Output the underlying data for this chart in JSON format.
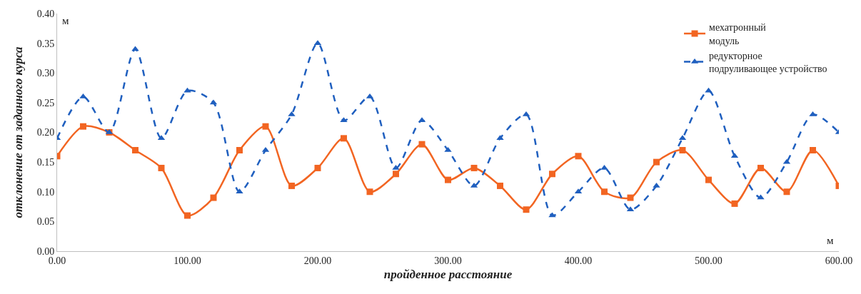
{
  "chart_data": {
    "type": "line",
    "x": [
      0,
      20,
      40,
      60,
      80,
      100,
      120,
      140,
      160,
      180,
      200,
      220,
      240,
      260,
      280,
      300,
      320,
      340,
      360,
      380,
      400,
      420,
      440,
      460,
      480,
      500,
      520,
      540,
      560,
      580,
      600
    ],
    "series": [
      {
        "name": "мехатронный\nмодуль",
        "color": "#f26522",
        "marker": "square",
        "line_style": "solid",
        "values": [
          0.16,
          0.21,
          0.2,
          0.17,
          0.14,
          0.06,
          0.09,
          0.17,
          0.21,
          0.11,
          0.14,
          0.19,
          0.1,
          0.13,
          0.18,
          0.12,
          0.14,
          0.11,
          0.07,
          0.13,
          0.16,
          0.1,
          0.09,
          0.15,
          0.17,
          0.12,
          0.08,
          0.14,
          0.1,
          0.17,
          0.11
        ]
      },
      {
        "name": "редукторное\nподруливающее устройство",
        "color": "#1f5fbf",
        "marker": "triangle",
        "line_style": "dashed",
        "values": [
          0.19,
          0.26,
          0.2,
          0.34,
          0.19,
          0.27,
          0.25,
          0.1,
          0.17,
          0.23,
          0.35,
          0.22,
          0.26,
          0.14,
          0.22,
          0.17,
          0.11,
          0.19,
          0.23,
          0.06,
          0.1,
          0.14,
          0.07,
          0.11,
          0.19,
          0.27,
          0.16,
          0.09,
          0.15,
          0.23,
          0.2
        ]
      }
    ],
    "xlabel": "пройденное расстояние",
    "ylabel": "отклонение от заданного курса",
    "xlim": [
      0,
      600
    ],
    "xticks": [
      {
        "value": 0,
        "label": "0.00"
      },
      {
        "value": 100,
        "label": "100.00"
      },
      {
        "value": 200,
        "label": "200.00"
      },
      {
        "value": 300,
        "label": "300.00"
      },
      {
        "value": 400,
        "label": "400.00"
      },
      {
        "value": 500,
        "label": "500.00"
      },
      {
        "value": 600,
        "label": "600.00"
      }
    ],
    "ylim": [
      0,
      0.4
    ],
    "yticks": [
      {
        "value": 0,
        "label": "0.00"
      },
      {
        "value": 0.05,
        "label": "0.05"
      },
      {
        "value": 0.1,
        "label": "0.10"
      },
      {
        "value": 0.15,
        "label": "0.15"
      },
      {
        "value": 0.2,
        "label": "0.20"
      },
      {
        "value": 0.25,
        "label": "0.25"
      },
      {
        "value": 0.3,
        "label": "0.30"
      },
      {
        "value": 0.35,
        "label": "0.35"
      },
      {
        "value": 0.4,
        "label": "0.40"
      }
    ],
    "annotations": [
      "м",
      "м"
    ],
    "legend": "top right"
  }
}
